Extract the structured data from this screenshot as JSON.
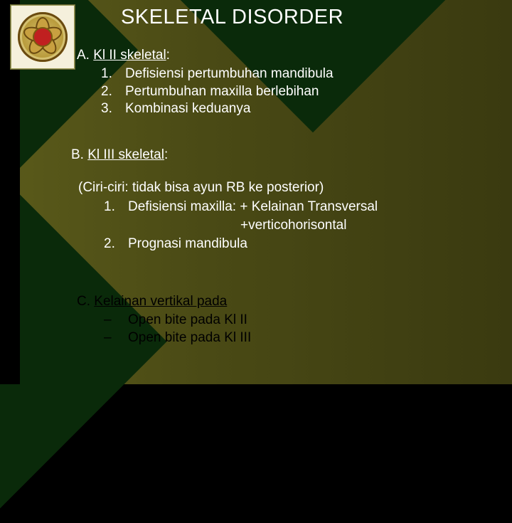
{
  "title": "SKELETAL DISORDER",
  "sectionA": {
    "header_prefix": "A. ",
    "header_underlined": "Kl II skeletal",
    "header_suffix": ":",
    "items": [
      {
        "n": "1.",
        "t": "Defisiensi pertumbuhan mandibula"
      },
      {
        "n": "2.",
        "t": "Pertumbuhan maxilla berlebihan"
      },
      {
        "n": "3.",
        "t": "Kombinasi keduanya"
      }
    ]
  },
  "sectionB": {
    "header_prefix": "B. ",
    "header_underlined": "Kl III skeletal",
    "header_suffix": ":",
    "ciri": "(Ciri-ciri: tidak bisa ayun RB ke posterior)",
    "item1_n": "1.",
    "item1_t": "Defisiensi maxilla: + Kelainan Transversal",
    "item1_cont": "+verticohorisontal",
    "item2_n": "2.",
    "item2_t": "Prognasi mandibula"
  },
  "sectionC": {
    "header_prefix": "C. ",
    "header_underlined": "Kelainan vertikal pada",
    "items": [
      {
        "d": "–",
        "t": "Open bite pada Kl II"
      },
      {
        "d": "–",
        "t": "Open bite pada Kl III"
      }
    ]
  },
  "colors": {
    "text_white": "#ffffff",
    "text_black": "#000000",
    "bg_olive": "#4a4a15",
    "bg_dark_green": "#0a2a0a"
  }
}
